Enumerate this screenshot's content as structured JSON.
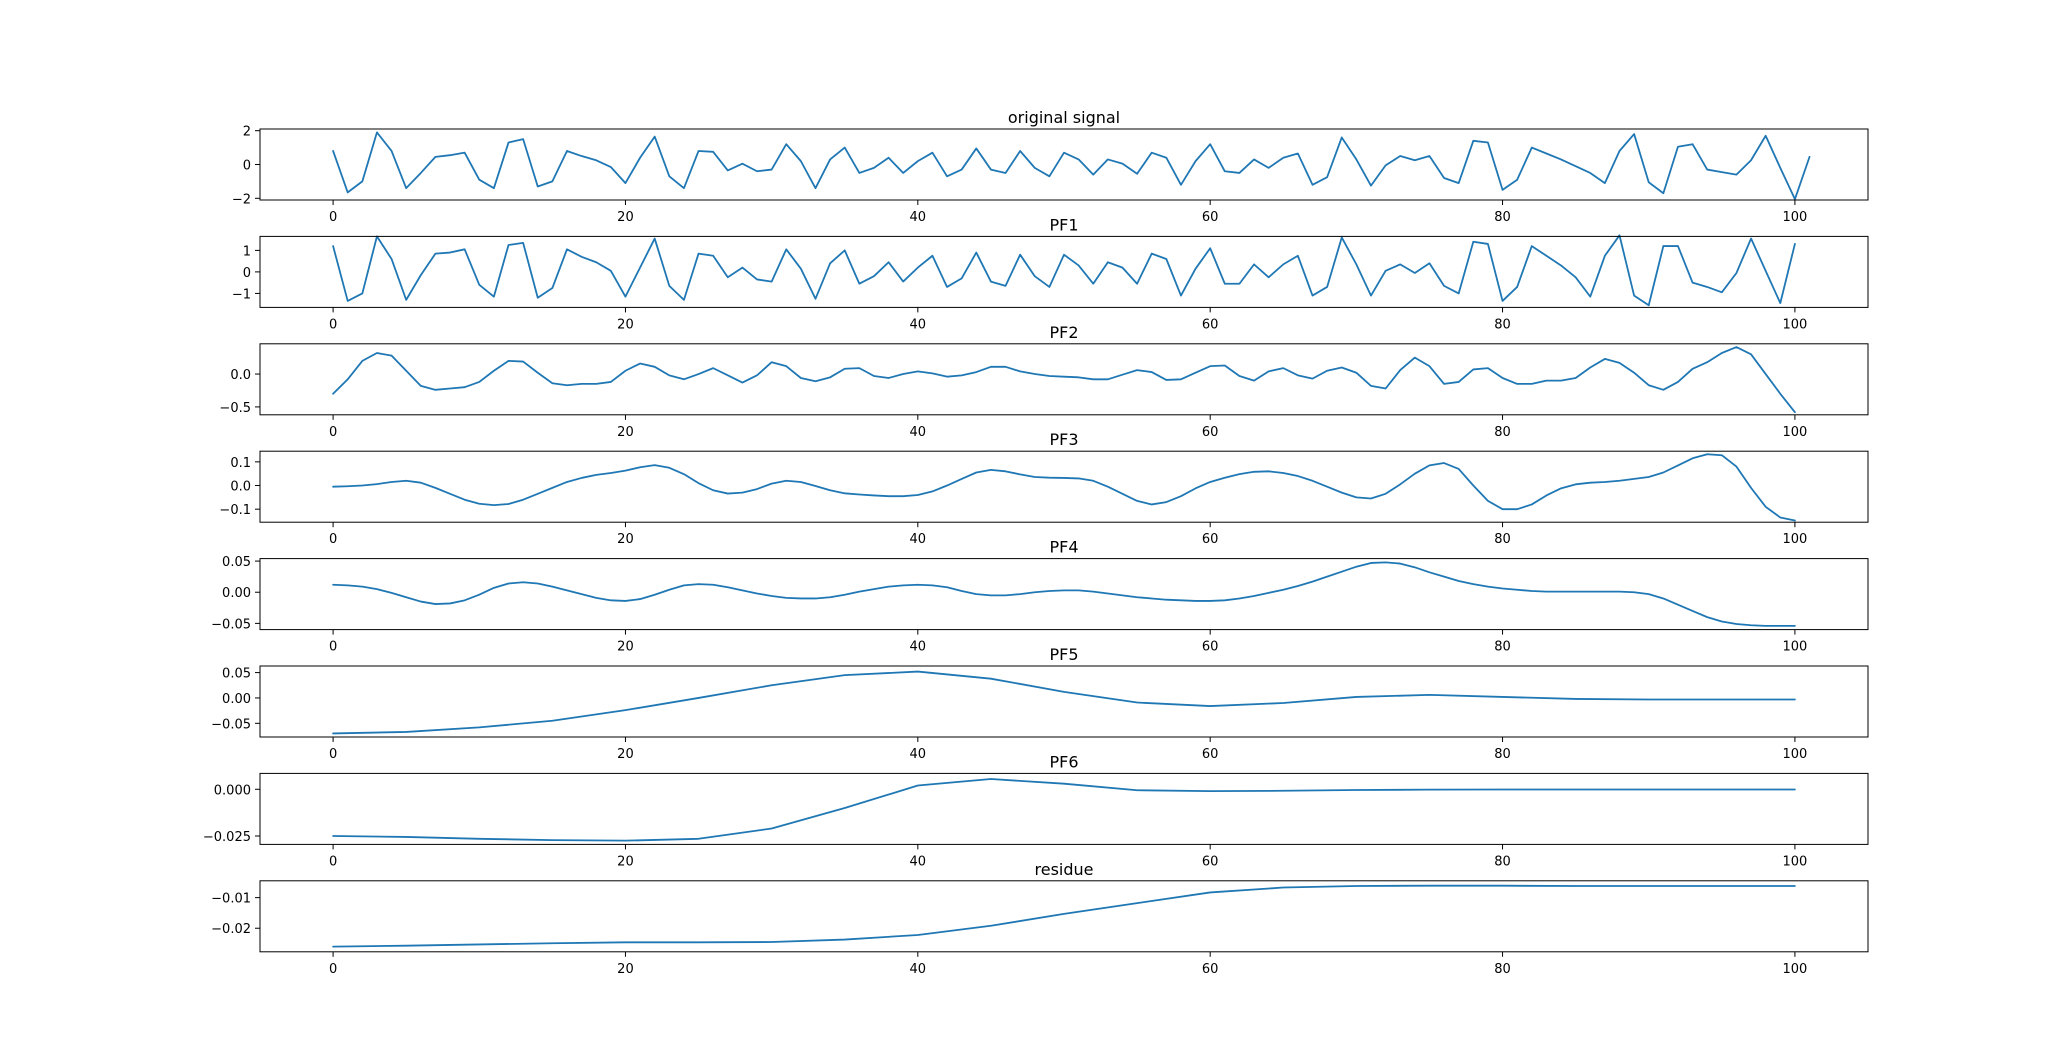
{
  "figure": {
    "background": "#ffffff",
    "line_color": "#1f77b4"
  },
  "chart_data": [
    {
      "type": "line",
      "title": "original signal",
      "xlabel": "",
      "ylabel": "",
      "xlim": [
        -5,
        105
      ],
      "ylim": [
        -2.1,
        2.1
      ],
      "xticks": [
        0,
        20,
        40,
        60,
        80,
        100
      ],
      "yticks": [
        -2,
        0,
        2
      ],
      "ytick_labels": [
        "−2",
        "0",
        "2"
      ],
      "grid": false,
      "series": [
        {
          "x_start": 0,
          "x_step": 1,
          "values": [
            0.8,
            -1.65,
            -1.0,
            1.9,
            0.8,
            -1.4,
            -0.5,
            0.45,
            0.55,
            0.7,
            -0.9,
            -1.4,
            1.3,
            1.5,
            -1.3,
            -1.0,
            0.8,
            0.5,
            0.25,
            -0.15,
            -1.1,
            0.4,
            1.65,
            -0.7,
            -1.4,
            0.8,
            0.75,
            -0.35,
            0.05,
            -0.4,
            -0.3,
            1.2,
            0.2,
            -1.4,
            0.3,
            1.0,
            -0.5,
            -0.2,
            0.4,
            -0.5,
            0.2,
            0.7,
            -0.7,
            -0.3,
            0.95,
            -0.3,
            -0.5,
            0.8,
            -0.2,
            -0.7,
            0.7,
            0.3,
            -0.6,
            0.3,
            0.05,
            -0.55,
            0.7,
            0.4,
            -1.2,
            0.2,
            1.2,
            -0.4,
            -0.5,
            0.3,
            -0.2,
            0.4,
            0.65,
            -1.2,
            -0.75,
            1.6,
            0.3,
            -1.25,
            -0.05,
            0.5,
            0.25,
            0.5,
            -0.8,
            -1.1,
            1.4,
            1.3,
            -1.5,
            -0.9,
            1.0,
            0.65,
            0.3,
            -0.1,
            -0.5,
            -1.1,
            0.8,
            1.8,
            -1.05,
            -1.7,
            1.05,
            1.2,
            -0.3,
            -0.45,
            -0.6,
            0.25,
            1.7,
            -0.2,
            -2.05,
            0.45
          ]
        }
      ]
    },
    {
      "type": "line",
      "title": "PF1",
      "xlabel": "",
      "ylabel": "",
      "xlim": [
        -5,
        105
      ],
      "ylim": [
        -1.65,
        1.65
      ],
      "xticks": [
        0,
        20,
        40,
        60,
        80,
        100
      ],
      "yticks": [
        -1,
        0,
        1
      ],
      "ytick_labels": [
        "−1",
        "0",
        "1"
      ],
      "grid": false,
      "series": [
        {
          "x_start": 0,
          "x_step": 1,
          "values": [
            1.2,
            -1.35,
            -1.0,
            1.65,
            0.6,
            -1.3,
            -0.15,
            0.85,
            0.9,
            1.05,
            -0.6,
            -1.15,
            1.25,
            1.35,
            -1.2,
            -0.75,
            1.05,
            0.7,
            0.45,
            0.05,
            -1.15,
            0.2,
            1.55,
            -0.65,
            -1.3,
            0.85,
            0.75,
            -0.25,
            0.2,
            -0.35,
            -0.45,
            1.05,
            0.15,
            -1.25,
            0.4,
            1.0,
            -0.55,
            -0.2,
            0.45,
            -0.45,
            0.2,
            0.75,
            -0.7,
            -0.3,
            0.9,
            -0.45,
            -0.65,
            0.8,
            -0.2,
            -0.7,
            0.8,
            0.3,
            -0.55,
            0.45,
            0.2,
            -0.55,
            0.85,
            0.6,
            -1.1,
            0.15,
            1.1,
            -0.55,
            -0.55,
            0.35,
            -0.25,
            0.35,
            0.75,
            -1.1,
            -0.7,
            1.6,
            0.35,
            -1.1,
            0.05,
            0.35,
            -0.05,
            0.4,
            -0.65,
            -1.0,
            1.4,
            1.3,
            -1.35,
            -0.7,
            1.2,
            0.75,
            0.3,
            -0.25,
            -1.15,
            0.75,
            1.7,
            -1.1,
            -1.55,
            1.2,
            1.2,
            -0.5,
            -0.7,
            -0.95,
            -0.05,
            1.55,
            0.05,
            -1.45,
            1.3
          ]
        }
      ]
    },
    {
      "type": "line",
      "title": "PF2",
      "xlabel": "",
      "ylabel": "",
      "xlim": [
        -5,
        105
      ],
      "ylim": [
        -0.62,
        0.46
      ],
      "xticks": [
        0,
        20,
        40,
        60,
        80,
        100
      ],
      "yticks": [
        -0.5,
        0.0
      ],
      "ytick_labels": [
        "−0.5",
        "0.0"
      ],
      "grid": false,
      "series": [
        {
          "x_start": 0,
          "x_step": 1,
          "values": [
            -0.3,
            -0.08,
            0.2,
            0.32,
            0.28,
            0.05,
            -0.18,
            -0.24,
            -0.22,
            -0.2,
            -0.12,
            0.05,
            0.2,
            0.19,
            0.02,
            -0.14,
            -0.17,
            -0.15,
            -0.15,
            -0.12,
            0.05,
            0.16,
            0.11,
            -0.02,
            -0.08,
            0.0,
            0.09,
            -0.02,
            -0.13,
            -0.02,
            0.18,
            0.12,
            -0.06,
            -0.11,
            -0.05,
            0.08,
            0.09,
            -0.03,
            -0.06,
            0.0,
            0.04,
            0.01,
            -0.04,
            -0.02,
            0.03,
            0.11,
            0.11,
            0.04,
            0.0,
            -0.03,
            -0.04,
            -0.05,
            -0.08,
            -0.08,
            -0.01,
            0.06,
            0.03,
            -0.09,
            -0.08,
            0.02,
            0.12,
            0.13,
            -0.03,
            -0.1,
            0.04,
            0.09,
            -0.02,
            -0.07,
            0.05,
            0.1,
            0.02,
            -0.18,
            -0.22,
            0.06,
            0.25,
            0.12,
            -0.15,
            -0.12,
            0.07,
            0.09,
            -0.06,
            -0.15,
            -0.15,
            -0.1,
            -0.1,
            -0.06,
            0.1,
            0.23,
            0.17,
            0.02,
            -0.17,
            -0.24,
            -0.12,
            0.08,
            0.18,
            0.32,
            0.41,
            0.3,
            0.0,
            -0.3,
            -0.58
          ]
        }
      ]
    },
    {
      "type": "line",
      "title": "PF3",
      "xlabel": "",
      "ylabel": "",
      "xlim": [
        -5,
        105
      ],
      "ylim": [
        -0.155,
        0.145
      ],
      "xticks": [
        0,
        20,
        40,
        60,
        80,
        100
      ],
      "yticks": [
        -0.1,
        0.0,
        0.1
      ],
      "ytick_labels": [
        "−0.1",
        "0.0",
        "0.1"
      ],
      "grid": false,
      "series": [
        {
          "x_start": 0,
          "x_step": 1,
          "values": [
            -0.005,
            -0.003,
            0.0,
            0.006,
            0.015,
            0.02,
            0.012,
            -0.01,
            -0.035,
            -0.06,
            -0.077,
            -0.083,
            -0.078,
            -0.06,
            -0.035,
            -0.01,
            0.015,
            0.032,
            0.045,
            0.053,
            0.063,
            0.077,
            0.086,
            0.075,
            0.048,
            0.01,
            -0.02,
            -0.034,
            -0.03,
            -0.015,
            0.008,
            0.02,
            0.015,
            -0.002,
            -0.02,
            -0.033,
            -0.038,
            -0.042,
            -0.045,
            -0.045,
            -0.04,
            -0.025,
            0.0,
            0.028,
            0.055,
            0.066,
            0.06,
            0.047,
            0.036,
            0.033,
            0.032,
            0.03,
            0.02,
            -0.005,
            -0.035,
            -0.065,
            -0.08,
            -0.07,
            -0.045,
            -0.012,
            0.015,
            0.033,
            0.048,
            0.058,
            0.06,
            0.053,
            0.04,
            0.02,
            -0.005,
            -0.03,
            -0.05,
            -0.055,
            -0.035,
            0.005,
            0.05,
            0.085,
            0.095,
            0.07,
            0.0,
            -0.065,
            -0.1,
            -0.1,
            -0.08,
            -0.042,
            -0.012,
            0.005,
            0.012,
            0.015,
            0.02,
            0.028,
            0.036,
            0.055,
            0.085,
            0.115,
            0.132,
            0.128,
            0.08,
            -0.01,
            -0.09,
            -0.135,
            -0.148
          ]
        }
      ]
    },
    {
      "type": "line",
      "title": "PF4",
      "xlabel": "",
      "ylabel": "",
      "xlim": [
        -5,
        105
      ],
      "ylim": [
        -0.06,
        0.054
      ],
      "xticks": [
        0,
        20,
        40,
        60,
        80,
        100
      ],
      "yticks": [
        -0.05,
        0.0,
        0.05
      ],
      "ytick_labels": [
        "−0.05",
        "0.00",
        "0.05"
      ],
      "grid": false,
      "series": [
        {
          "x_start": 0,
          "x_step": 1,
          "values": [
            0.012,
            0.011,
            0.009,
            0.005,
            -0.001,
            -0.008,
            -0.015,
            -0.019,
            -0.018,
            -0.013,
            -0.004,
            0.007,
            0.014,
            0.016,
            0.014,
            0.009,
            0.003,
            -0.003,
            -0.009,
            -0.013,
            -0.014,
            -0.011,
            -0.004,
            0.004,
            0.011,
            0.013,
            0.012,
            0.008,
            0.003,
            -0.002,
            -0.006,
            -0.009,
            -0.01,
            -0.01,
            -0.008,
            -0.004,
            0.001,
            0.005,
            0.009,
            0.011,
            0.012,
            0.011,
            0.008,
            0.002,
            -0.003,
            -0.005,
            -0.005,
            -0.003,
            0.0,
            0.002,
            0.003,
            0.003,
            0.001,
            -0.002,
            -0.005,
            -0.008,
            -0.01,
            -0.012,
            -0.013,
            -0.014,
            -0.014,
            -0.013,
            -0.01,
            -0.006,
            -0.001,
            0.004,
            0.01,
            0.017,
            0.025,
            0.033,
            0.041,
            0.047,
            0.048,
            0.046,
            0.04,
            0.032,
            0.025,
            0.018,
            0.013,
            0.009,
            0.006,
            0.004,
            0.002,
            0.001,
            0.001,
            0.001,
            0.001,
            0.001,
            0.001,
            0.0,
            -0.003,
            -0.01,
            -0.02,
            -0.03,
            -0.04,
            -0.047,
            -0.051,
            -0.053,
            -0.054,
            -0.054,
            -0.054
          ]
        }
      ]
    },
    {
      "type": "line",
      "title": "PF5",
      "xlabel": "",
      "ylabel": "",
      "xlim": [
        -5,
        105
      ],
      "ylim": [
        -0.077,
        0.063
      ],
      "xticks": [
        0,
        20,
        40,
        60,
        80,
        100
      ],
      "yticks": [
        -0.05,
        0.0,
        0.05
      ],
      "ytick_labels": [
        "−0.05",
        "0.00",
        "0.05"
      ],
      "grid": false,
      "series": [
        {
          "x_start": 0,
          "x_step": 5,
          "values": [
            -0.07,
            -0.067,
            -0.058,
            -0.045,
            -0.024,
            0.0,
            0.025,
            0.045,
            0.052,
            0.038,
            0.012,
            -0.009,
            -0.016,
            -0.01,
            0.002,
            0.006,
            0.002,
            -0.002,
            -0.003,
            -0.003,
            -0.003
          ]
        }
      ]
    },
    {
      "type": "line",
      "title": "PF6",
      "xlabel": "",
      "ylabel": "",
      "xlim": [
        -5,
        105
      ],
      "ylim": [
        -0.0295,
        0.0085
      ],
      "xticks": [
        0,
        20,
        40,
        60,
        80,
        100
      ],
      "yticks": [
        -0.025,
        0.0
      ],
      "ytick_labels": [
        "−0.025",
        "0.000"
      ],
      "grid": false,
      "series": [
        {
          "x_start": 0,
          "x_step": 5,
          "values": [
            -0.025,
            -0.0255,
            -0.0265,
            -0.0272,
            -0.0275,
            -0.0265,
            -0.021,
            -0.01,
            0.002,
            0.0055,
            0.003,
            -0.0005,
            -0.001,
            -0.0008,
            -0.0004,
            -0.0002,
            -0.0001,
            -0.0001,
            -0.0001,
            -0.0001,
            -0.0001
          ]
        }
      ]
    },
    {
      "type": "line",
      "title": "residue",
      "xlabel": "",
      "ylabel": "",
      "xlim": [
        -5,
        105
      ],
      "ylim": [
        -0.0277,
        -0.0045
      ],
      "xticks": [
        0,
        20,
        40,
        60,
        80,
        100
      ],
      "yticks": [
        -0.02,
        -0.01
      ],
      "ytick_labels": [
        "−0.02",
        "−0.01"
      ],
      "grid": false,
      "series": [
        {
          "x_start": 0,
          "x_step": 5,
          "values": [
            -0.026,
            -0.0257,
            -0.0253,
            -0.0249,
            -0.0246,
            -0.0246,
            -0.0245,
            -0.0237,
            -0.0222,
            -0.0192,
            -0.0153,
            -0.0118,
            -0.0083,
            -0.0067,
            -0.0062,
            -0.0061,
            -0.0061,
            -0.0062,
            -0.0062,
            -0.0062,
            -0.0062
          ]
        }
      ]
    }
  ]
}
